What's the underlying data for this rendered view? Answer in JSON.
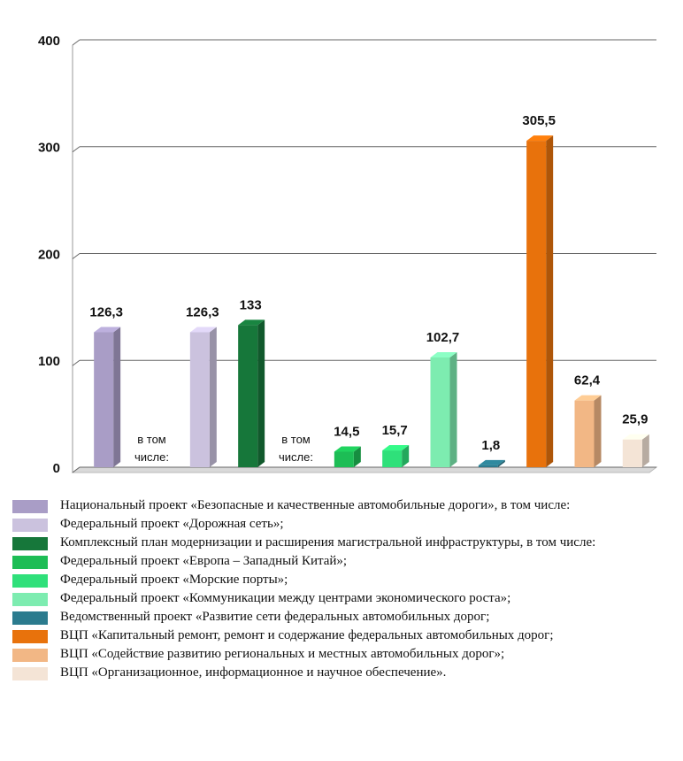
{
  "chart_data": {
    "type": "bar3d",
    "categories": [
      null,
      null,
      null,
      null,
      null,
      null,
      null,
      null,
      null,
      null,
      null,
      null
    ],
    "series": [
      {
        "name": "Национальный проект «Безопасные и качественные автомобильные дороги», в том числе:",
        "color": "#a99dc6",
        "values": [
          126.3,
          null,
          null,
          null,
          null,
          null,
          null,
          null,
          null,
          null,
          null,
          null
        ],
        "value_labels": [
          "126,3",
          null,
          null,
          null,
          null,
          null,
          null,
          null,
          null,
          null,
          null,
          null
        ]
      },
      {
        "name": "Федеральный проект «Дорожная сеть»;",
        "color": "#cbc2de",
        "values": [
          null,
          null,
          126.3,
          null,
          null,
          null,
          null,
          null,
          null,
          null,
          null,
          null
        ],
        "value_labels": [
          null,
          null,
          "126,3",
          null,
          null,
          null,
          null,
          null,
          null,
          null,
          null,
          null
        ]
      },
      {
        "name": "Комплексный план модернизации и расширения магистральной инфраструктуры, в том числе:",
        "color": "#16773a",
        "values": [
          null,
          null,
          null,
          133,
          null,
          null,
          null,
          null,
          null,
          null,
          null,
          null
        ]
      },
      {
        "name": "Федеральный проект «Европа – Западный Китай»;",
        "color": "#1dbd55",
        "values": [
          null,
          null,
          null,
          null,
          null,
          14.5,
          null,
          null,
          null,
          null,
          null,
          null
        ],
        "value_labels": [
          null,
          null,
          null,
          null,
          null,
          "14,5",
          null,
          null,
          null,
          null,
          null,
          null
        ]
      },
      {
        "name": "Федеральный проект «Морские порты»;",
        "color": "#2fe07a",
        "values": [
          null,
          null,
          null,
          null,
          null,
          null,
          15.7,
          null,
          null,
          null,
          null,
          null
        ],
        "value_labels": [
          null,
          null,
          null,
          null,
          null,
          null,
          "15,7",
          null,
          null,
          null,
          null,
          null
        ]
      },
      {
        "name": "Федеральный проект «Коммуникации между центрами экономического роста»;",
        "color": "#7decb0",
        "values": [
          null,
          null,
          null,
          null,
          null,
          null,
          null,
          102.7,
          null,
          null,
          null,
          null
        ],
        "value_labels": [
          null,
          null,
          null,
          null,
          null,
          null,
          null,
          "102,7",
          null,
          null,
          null,
          null
        ]
      },
      {
        "name": "Ведомственный проект «Развитие сети федеральных автомобильных дорог;",
        "color": "#2b7b8e",
        "values": [
          null,
          null,
          null,
          null,
          null,
          null,
          null,
          null,
          1.8,
          null,
          null,
          null
        ],
        "value_labels": [
          null,
          null,
          null,
          null,
          null,
          null,
          null,
          null,
          "1,8",
          null,
          null,
          null
        ]
      },
      {
        "name": "ВЦП «Капитальный ремонт, ремонт и содержание федеральных автомобильных дорог;",
        "color": "#e8720c",
        "values": [
          null,
          null,
          null,
          null,
          null,
          null,
          null,
          null,
          null,
          305.5,
          null,
          null
        ],
        "value_labels": [
          null,
          null,
          null,
          null,
          null,
          null,
          null,
          null,
          null,
          "305,5",
          null,
          null
        ]
      },
      {
        "name": "ВЦП «Содействие развитию региональных и местных автомобильных дорог»;",
        "color": "#f2b785",
        "values": [
          null,
          null,
          null,
          null,
          null,
          null,
          null,
          null,
          null,
          null,
          62.4,
          null
        ],
        "value_labels": [
          null,
          null,
          null,
          null,
          null,
          null,
          null,
          null,
          null,
          null,
          "62,4",
          null
        ]
      },
      {
        "name": "ВЦП «Организационное, информационное и научное обеспечение».",
        "color": "#f4e4d6",
        "values": [
          null,
          null,
          null,
          null,
          null,
          null,
          null,
          null,
          null,
          null,
          null,
          25.9
        ],
        "value_labels": [
          null,
          null,
          null,
          null,
          null,
          null,
          null,
          null,
          null,
          null,
          null,
          "25,9"
        ]
      }
    ],
    "annotations": [
      "в том числе:",
      "в том числе:"
    ],
    "ylim": [
      0,
      400
    ],
    "yticks": [
      0,
      100,
      200,
      300,
      400
    ],
    "grid": true
  }
}
